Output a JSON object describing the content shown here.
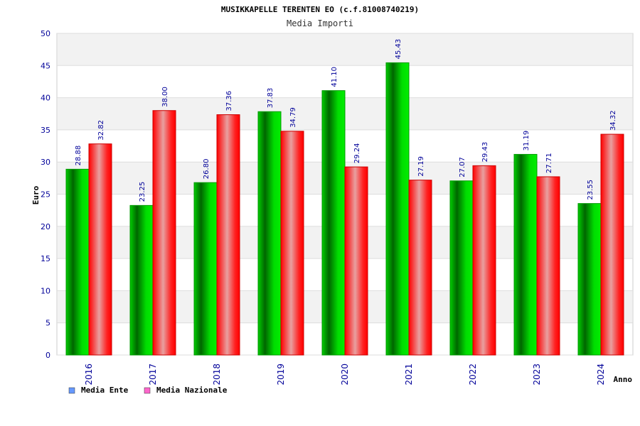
{
  "chart_data": {
    "type": "bar",
    "title": "MUSIKKAPELLE TERENTEN EO (c.f.81008740219)",
    "subtitle": "Media Importi",
    "xlabel": "Anno",
    "ylabel": "Euro",
    "categories": [
      "2016",
      "2017",
      "2018",
      "2019",
      "2020",
      "2021",
      "2022",
      "2023",
      "2024"
    ],
    "series": [
      {
        "name": "Media Ente",
        "values": [
          28.88,
          23.25,
          26.8,
          37.83,
          41.1,
          45.43,
          27.07,
          31.19,
          23.55
        ],
        "color": "#00cc00",
        "legend_color": "#6699ff"
      },
      {
        "name": "Media Nazionale",
        "values": [
          32.82,
          38.0,
          37.36,
          34.79,
          29.24,
          27.19,
          29.43,
          27.71,
          34.32
        ],
        "color": "#ff0000",
        "legend_color": "#ff66cc"
      }
    ],
    "value_labels": [
      [
        "28.88",
        "23.25",
        "26.80",
        "37.83",
        "41.10",
        "45.43",
        "27.07",
        "31.19",
        "23.55"
      ],
      [
        "32.82",
        "38.00",
        "37.36",
        "34.79",
        "29.24",
        "27.19",
        "29.43",
        "27.71",
        "34.32"
      ]
    ],
    "y_ticks": [
      "0",
      "5",
      "10",
      "15",
      "20",
      "25",
      "30",
      "35",
      "40",
      "45",
      "50"
    ],
    "ylim": [
      0,
      50
    ],
    "grid": true,
    "legend": "bottom-left"
  }
}
